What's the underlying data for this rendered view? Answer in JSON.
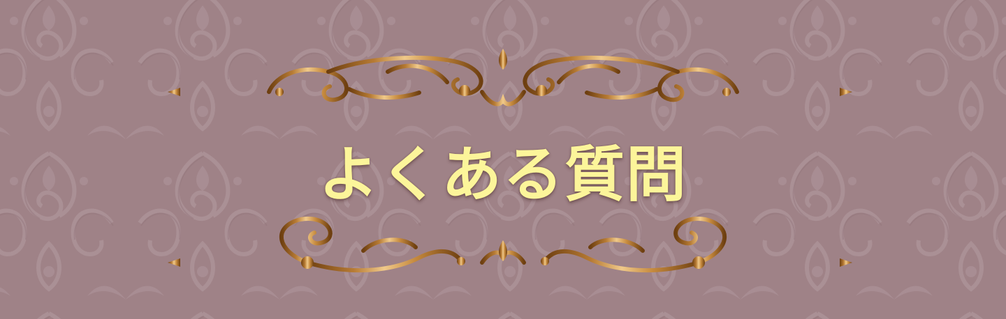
{
  "banner": {
    "title": "よくある質問",
    "title_color": "#fcf59a",
    "background_color": "#9f8287",
    "ornament_colors": [
      "#6e3f10",
      "#c68a3e",
      "#f0c98a"
    ],
    "background_pattern": "damask-pattern"
  }
}
